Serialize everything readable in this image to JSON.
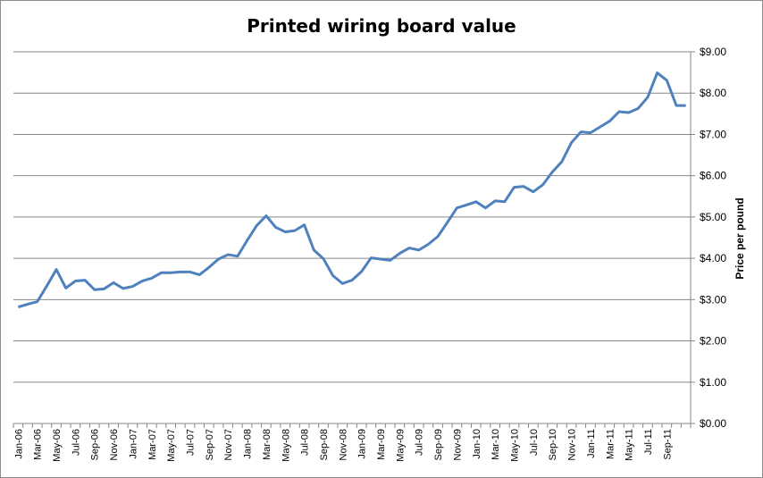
{
  "chart_data": {
    "type": "line",
    "title": "Printed wiring board value",
    "xlabel": "",
    "ylabel": "Price per pound",
    "ylim": [
      0,
      9
    ],
    "y_ticks": [
      "$0.00",
      "$1.00",
      "$2.00",
      "$3.00",
      "$4.00",
      "$5.00",
      "$6.00",
      "$7.00",
      "$8.00",
      "$9.00"
    ],
    "y_axis_side": "right",
    "grid": "horizontal",
    "line_color": "#4f81bd",
    "x_tick_labels": [
      "Jan-06",
      "Mar-06",
      "May-06",
      "Jul-06",
      "Sep-06",
      "Nov-06",
      "Jan-07",
      "Mar-07",
      "May-07",
      "Jul-07",
      "Sep-07",
      "Nov-07",
      "Jan-08",
      "Mar-08",
      "May-08",
      "Jul-08",
      "Sep-08",
      "Nov-08",
      "Jan-09",
      "Mar-09",
      "May-09",
      "Jul-09",
      "Sep-09",
      "Nov-09",
      "Jan-10",
      "Mar-10",
      "May-10",
      "Jul-10",
      "Sep-10",
      "Nov-10",
      "Jan-11",
      "Mar-11",
      "May-11",
      "Jul-11",
      "Sep-11"
    ],
    "x": [
      "Jan-06",
      "Feb-06",
      "Mar-06",
      "Apr-06",
      "May-06",
      "Jun-06",
      "Jul-06",
      "Aug-06",
      "Sep-06",
      "Oct-06",
      "Nov-06",
      "Dec-06",
      "Jan-07",
      "Feb-07",
      "Mar-07",
      "Apr-07",
      "May-07",
      "Jun-07",
      "Jul-07",
      "Aug-07",
      "Sep-07",
      "Oct-07",
      "Nov-07",
      "Dec-07",
      "Jan-08",
      "Feb-08",
      "Mar-08",
      "Apr-08",
      "May-08",
      "Jun-08",
      "Jul-08",
      "Aug-08",
      "Sep-08",
      "Oct-08",
      "Nov-08",
      "Dec-08",
      "Jan-09",
      "Feb-09",
      "Mar-09",
      "Apr-09",
      "May-09",
      "Jun-09",
      "Jul-09",
      "Aug-09",
      "Sep-09",
      "Oct-09",
      "Nov-09",
      "Dec-09",
      "Jan-10",
      "Feb-10",
      "Mar-10",
      "Apr-10",
      "May-10",
      "Jun-10",
      "Jul-10",
      "Aug-10",
      "Sep-10",
      "Oct-10",
      "Nov-10",
      "Dec-10",
      "Jan-11",
      "Feb-11",
      "Mar-11",
      "Apr-11",
      "May-11",
      "Jun-11",
      "Jul-11",
      "Aug-11",
      "Sep-11",
      "Oct-11",
      "Nov-11"
    ],
    "series": [
      {
        "values": [
          2.82,
          2.89,
          2.95,
          3.33,
          3.73,
          3.28,
          3.45,
          3.47,
          3.24,
          3.26,
          3.41,
          3.27,
          3.32,
          3.45,
          3.52,
          3.65,
          3.65,
          3.67,
          3.67,
          3.6,
          3.78,
          3.98,
          4.09,
          4.05,
          4.43,
          4.79,
          5.03,
          4.75,
          4.64,
          4.67,
          4.81,
          4.2,
          3.99,
          3.58,
          3.39,
          3.47,
          3.68,
          4.01,
          3.98,
          3.95,
          4.12,
          4.25,
          4.2,
          4.34,
          4.53,
          4.87,
          5.22,
          5.29,
          5.37,
          5.22,
          5.39,
          5.37,
          5.72,
          5.74,
          5.61,
          5.78,
          6.09,
          6.34,
          6.8,
          7.06,
          7.04,
          7.18,
          7.32,
          7.55,
          7.53,
          7.63,
          7.9,
          8.49,
          8.31,
          7.7,
          7.7
        ]
      }
    ]
  }
}
